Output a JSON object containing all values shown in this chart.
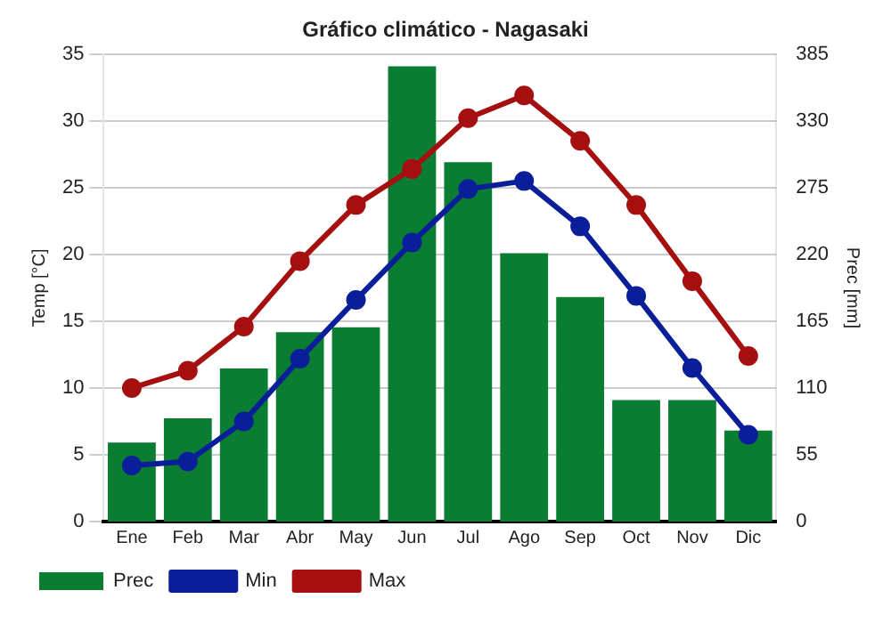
{
  "chart_data": {
    "type": "bar",
    "title": "Gráfico climático - Nagasaki",
    "ylabel": "Temp [°C]",
    "y2label": "Prec [mm]",
    "categories": [
      "Ene",
      "Feb",
      "Mar",
      "Abr",
      "May",
      "Jun",
      "Jul",
      "Ago",
      "Sep",
      "Oct",
      "Nov",
      "Dic"
    ],
    "series": [
      {
        "name": "Prec",
        "axis": "y2",
        "color": "#0a7d32",
        "values": [
          65,
          85,
          126,
          156,
          160,
          375,
          296,
          221,
          185,
          100,
          100,
          75
        ]
      },
      {
        "name": "Min",
        "type": "line",
        "color": "#0a1e9a",
        "values": [
          4.2,
          4.5,
          7.5,
          12.2,
          16.6,
          20.9,
          24.9,
          25.5,
          22.1,
          16.9,
          11.5,
          6.5
        ]
      },
      {
        "name": "Max",
        "type": "line",
        "color": "#a50f0f",
        "values": [
          10,
          11.3,
          14.6,
          19.5,
          23.7,
          26.4,
          30.2,
          31.9,
          28.5,
          23.7,
          18,
          12.4
        ]
      }
    ],
    "ylim": [
      0,
      35
    ],
    "yticks": [
      0,
      5,
      10,
      15,
      20,
      25,
      30,
      35
    ],
    "y2lim": [
      0,
      385
    ],
    "y2ticks": [
      0,
      55,
      110,
      165,
      220,
      275,
      330,
      385
    ],
    "grid": "y",
    "legend": "bottom",
    "marker": "circle",
    "line_style": "solid"
  }
}
